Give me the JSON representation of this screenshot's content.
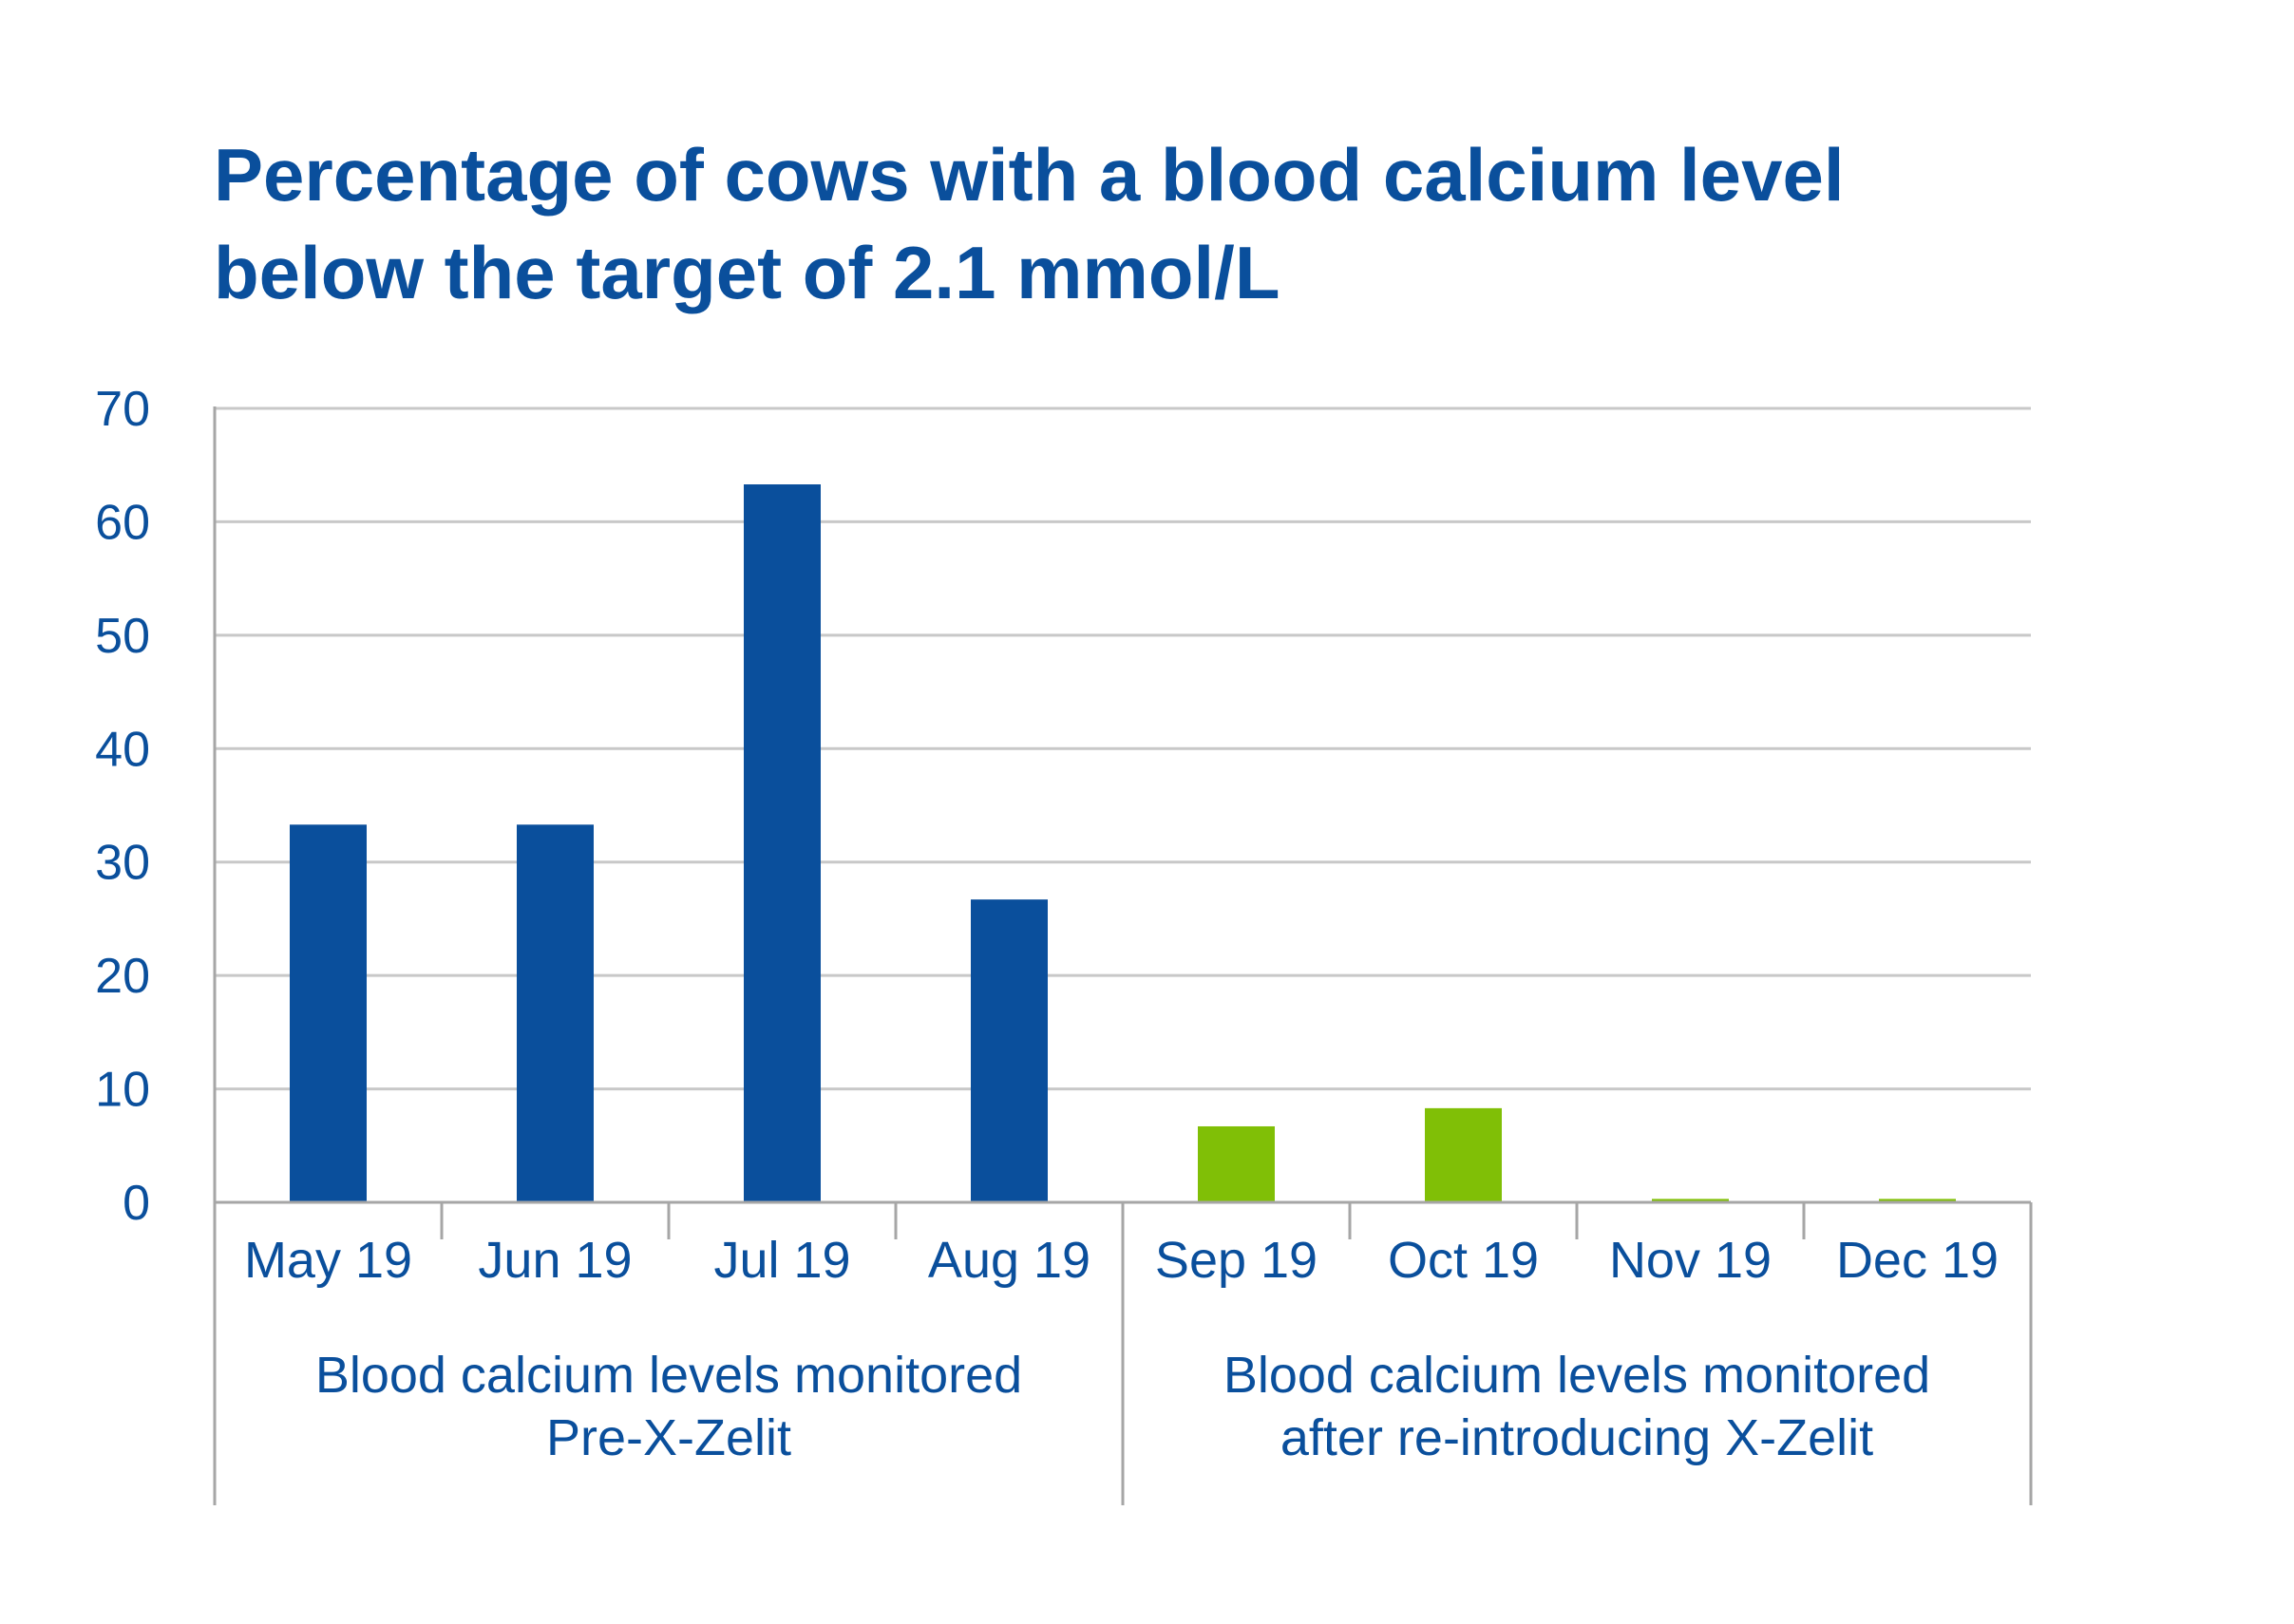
{
  "title_lines": [
    "Percentage of cows with a blood calcium level",
    "below the target of 2.1 mmol/L"
  ],
  "colors": {
    "title": "#0a4f9c",
    "text": "#0a4f9c",
    "bar_pre": "#0a4f9c",
    "bar_post": "#80bf06",
    "grid": "#c8c8c8",
    "axis": "#a6a6a6"
  },
  "chart_data": {
    "type": "bar",
    "ylim": [
      0,
      70
    ],
    "yticks": [
      0,
      10,
      20,
      30,
      40,
      50,
      60,
      70
    ],
    "grid": true,
    "categories": [
      "May 19",
      "Jun 19",
      "Jul 19",
      "Aug 19",
      "Sep 19",
      "Oct 19",
      "Nov 19",
      "Dec 19"
    ],
    "values": [
      33.3,
      33.3,
      63.3,
      26.7,
      6.7,
      8.3,
      0.3,
      0.3
    ],
    "bar_groups": [
      "pre",
      "pre",
      "pre",
      "pre",
      "post",
      "post",
      "post",
      "post"
    ],
    "group_labels": [
      {
        "lines": [
          "Blood calcium levels monitored",
          "Pre-X-Zelit"
        ],
        "span": [
          0,
          3
        ]
      },
      {
        "lines": [
          "Blood calcium levels monitored",
          "after re-introducing X-Zelit"
        ],
        "span": [
          4,
          7
        ]
      }
    ]
  }
}
